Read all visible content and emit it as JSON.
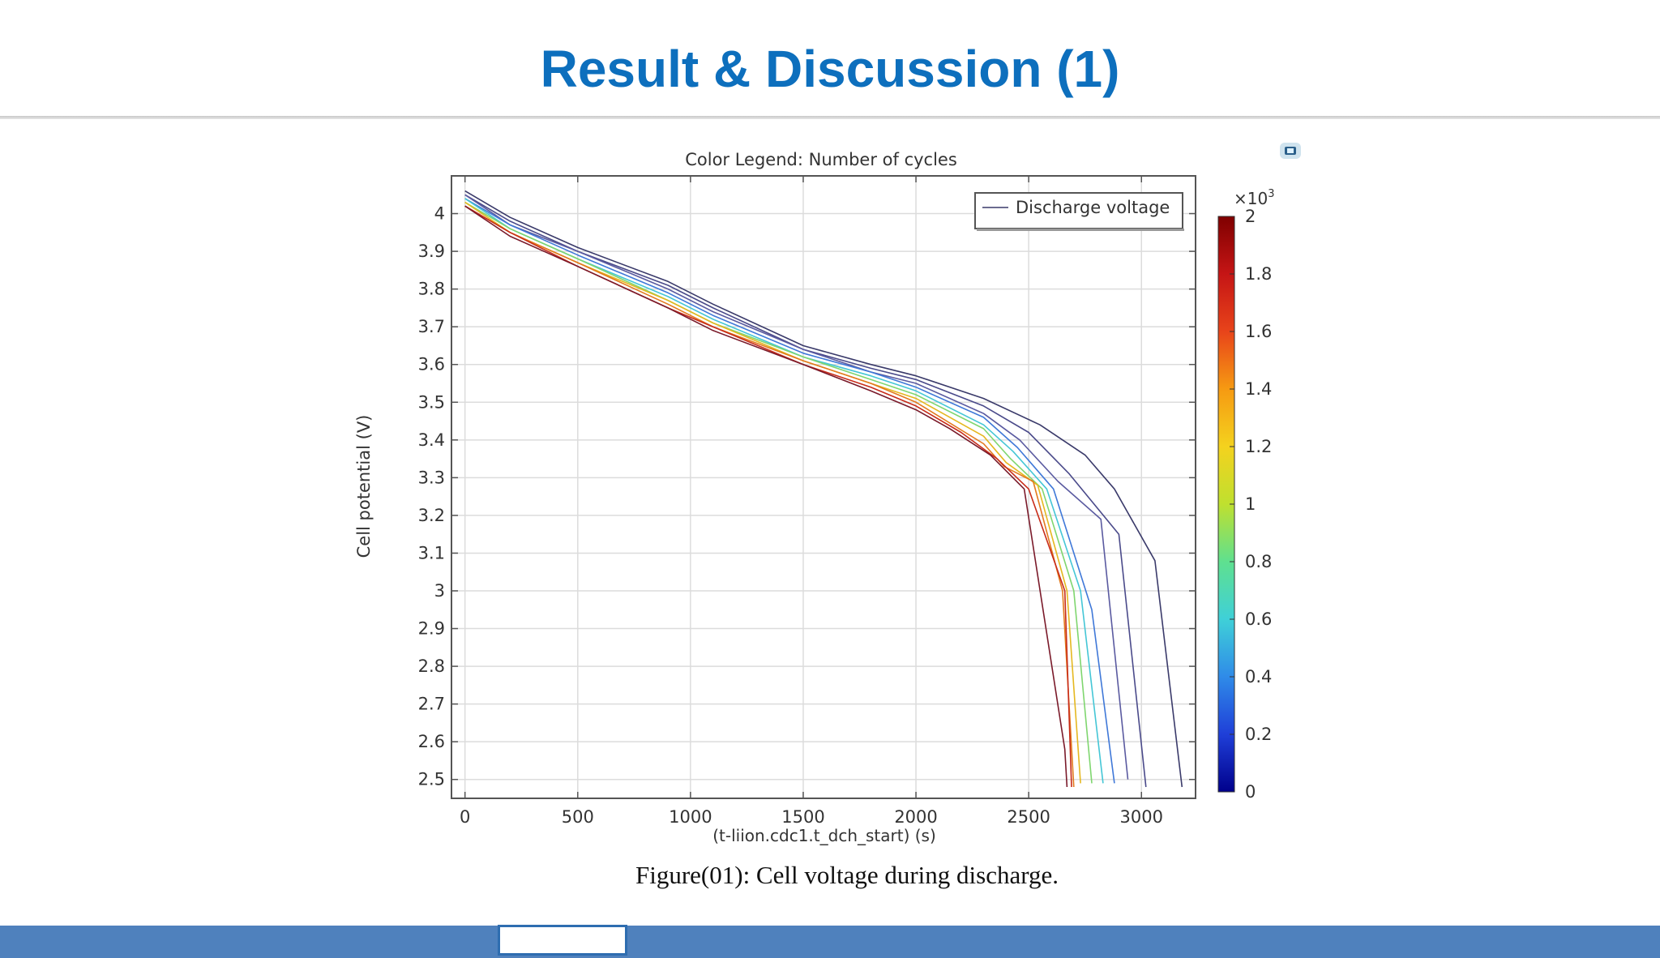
{
  "slide": {
    "title": "Result & Discussion (1)",
    "caption": "Figure(01): Cell voltage during discharge."
  },
  "chart_data": {
    "type": "line",
    "title": "Color Legend: Number of cycles",
    "xlabel": "(t-liion.cdc1.t_dch_start) (s)",
    "ylabel": "Cell potential (V)",
    "xlim": [
      -60,
      3240
    ],
    "ylim": [
      2.45,
      4.1
    ],
    "xticks": [
      0,
      500,
      1000,
      1500,
      2000,
      2500,
      3000
    ],
    "yticks": [
      2.5,
      2.6,
      2.7,
      2.8,
      2.9,
      3,
      3.1,
      3.2,
      3.3,
      3.4,
      3.5,
      3.6,
      3.7,
      3.8,
      3.9,
      4
    ],
    "grid": true,
    "legend": {
      "label": "Discharge voltage",
      "position": "top-right"
    },
    "colorbar": {
      "label": "Number of cycles",
      "multiplier": "×10",
      "exponent": "3",
      "min": 0,
      "max": 2,
      "ticks": [
        "0",
        "0.2",
        "0.4",
        "0.6",
        "0.8",
        "1",
        "1.2",
        "1.4",
        "1.6",
        "1.8",
        "2"
      ],
      "colors": [
        "#00008b",
        "#1f3fd8",
        "#2f8be8",
        "#3fd0d8",
        "#5fe08f",
        "#bfe02f",
        "#f4d21e",
        "#f69a12",
        "#e8441a",
        "#c51515",
        "#7f0000"
      ]
    },
    "series": [
      {
        "color": "#3a3a6a",
        "x": [
          0,
          200,
          500,
          900,
          1100,
          1500,
          1800,
          2000,
          2300,
          2550,
          2750,
          2880,
          3060,
          3180
        ],
        "y": [
          4.06,
          3.99,
          3.91,
          3.82,
          3.76,
          3.65,
          3.6,
          3.57,
          3.51,
          3.44,
          3.36,
          3.27,
          3.08,
          2.48
        ]
      },
      {
        "color": "#4a4a8a",
        "x": [
          0,
          200,
          500,
          900,
          1100,
          1500,
          1800,
          2000,
          2300,
          2500,
          2680,
          2900,
          3020
        ],
        "y": [
          4.05,
          3.98,
          3.9,
          3.81,
          3.75,
          3.64,
          3.59,
          3.56,
          3.49,
          3.42,
          3.31,
          3.15,
          2.48
        ]
      },
      {
        "color": "#5a5aa0",
        "x": [
          0,
          200,
          500,
          900,
          1100,
          1500,
          1800,
          2000,
          2300,
          2460,
          2630,
          2820,
          2940
        ],
        "y": [
          4.05,
          3.97,
          3.9,
          3.8,
          3.74,
          3.64,
          3.58,
          3.55,
          3.47,
          3.4,
          3.29,
          3.19,
          2.5
        ]
      },
      {
        "color": "#3f78d8",
        "x": [
          0,
          200,
          500,
          900,
          1100,
          1500,
          1800,
          2000,
          2300,
          2450,
          2610,
          2780,
          2880
        ],
        "y": [
          4.04,
          3.97,
          3.89,
          3.79,
          3.73,
          3.63,
          3.58,
          3.54,
          3.46,
          3.38,
          3.27,
          2.95,
          2.49
        ]
      },
      {
        "color": "#44c6d6",
        "x": [
          0,
          200,
          500,
          900,
          1100,
          1500,
          1800,
          2000,
          2300,
          2430,
          2580,
          2730,
          2830
        ],
        "y": [
          4.04,
          3.96,
          3.88,
          3.78,
          3.72,
          3.62,
          3.57,
          3.53,
          3.44,
          3.37,
          3.27,
          3.0,
          2.49
        ]
      },
      {
        "color": "#7fd66f",
        "x": [
          0,
          200,
          500,
          900,
          1100,
          1500,
          1800,
          2000,
          2300,
          2420,
          2560,
          2700,
          2780
        ],
        "y": [
          4.03,
          3.96,
          3.88,
          3.77,
          3.71,
          3.62,
          3.56,
          3.52,
          3.43,
          3.35,
          3.27,
          3.0,
          2.49
        ]
      },
      {
        "color": "#e5b820",
        "x": [
          0,
          200,
          500,
          900,
          1100,
          1500,
          1800,
          2000,
          2300,
          2400,
          2540,
          2670,
          2730
        ],
        "y": [
          4.03,
          3.95,
          3.87,
          3.77,
          3.71,
          3.61,
          3.55,
          3.51,
          3.41,
          3.34,
          3.28,
          3.0,
          2.49
        ]
      },
      {
        "color": "#e37a1e",
        "x": [
          0,
          200,
          500,
          900,
          1100,
          1500,
          1800,
          2000,
          2300,
          2390,
          2520,
          2650,
          2700
        ],
        "y": [
          4.02,
          3.95,
          3.87,
          3.76,
          3.7,
          3.61,
          3.55,
          3.5,
          3.39,
          3.33,
          3.29,
          3.0,
          2.48
        ]
      },
      {
        "color": "#c82c1a",
        "x": [
          0,
          200,
          500,
          900,
          1100,
          1500,
          1800,
          2000,
          2200,
          2360,
          2500,
          2660,
          2690
        ],
        "y": [
          4.02,
          3.95,
          3.86,
          3.75,
          3.7,
          3.6,
          3.54,
          3.49,
          3.42,
          3.35,
          3.27,
          3.0,
          2.48
        ]
      },
      {
        "color": "#7a1a2a",
        "x": [
          0,
          200,
          500,
          900,
          1100,
          1500,
          1800,
          2000,
          2150,
          2330,
          2480,
          2660,
          2670
        ],
        "y": [
          4.02,
          3.94,
          3.86,
          3.75,
          3.69,
          3.6,
          3.53,
          3.48,
          3.43,
          3.36,
          3.27,
          2.58,
          2.48
        ]
      }
    ]
  }
}
